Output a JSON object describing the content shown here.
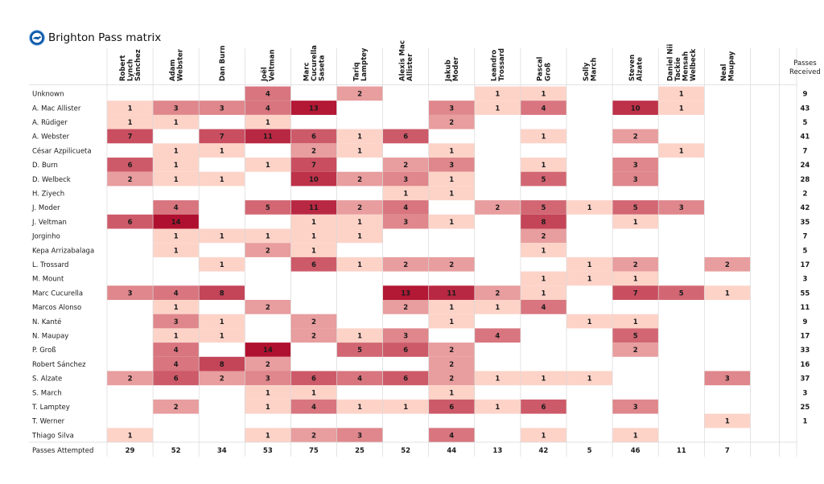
{
  "title": "Brighton Pass matrix",
  "logo_icon": "brighton-crest-icon",
  "chart_data": {
    "type": "heatmap",
    "title": "Brighton Pass matrix",
    "columns": [
      [
        "Robert",
        "Lynch",
        "Sánchez"
      ],
      [
        "Adam",
        "Webster"
      ],
      [
        "Dan Burn"
      ],
      [
        "Joël",
        "Veltman"
      ],
      [
        "Marc",
        "Cucurella",
        "Saseta"
      ],
      [
        "Tariq",
        "Lamptey"
      ],
      [
        "Alexis Mac",
        "Allister"
      ],
      [
        "Jakub",
        "Moder"
      ],
      [
        "Leandro",
        "Trossard"
      ],
      [
        "Pascal",
        "Groß"
      ],
      [
        "Solly",
        "March"
      ],
      [
        "Steven",
        "Alzate"
      ],
      [
        "Daniel Nii",
        "Tackie",
        "Mensah",
        "Welbeck"
      ],
      [
        "Neal",
        "Maupay"
      ]
    ],
    "rows": [
      "Unknown",
      "A. Mac Allister",
      "A. Rüdiger",
      "A. Webster",
      "César Azpilicueta",
      "D. Burn",
      "D. Welbeck",
      "H. Ziyech",
      "J. Moder",
      "J. Veltman",
      "Jorginho",
      "Kepa Arrizabalaga",
      "L. Trossard",
      "M. Mount",
      "Marc Cucurella",
      "Marcos Alonso",
      "N. Kanté",
      "N. Maupay",
      "P. Groß",
      "Robert Sánchez",
      "S. Alzate",
      "S. March",
      "T. Lamptey",
      "T. Werner",
      "Thiago Silva"
    ],
    "values": [
      [
        null,
        null,
        null,
        4,
        null,
        2,
        null,
        null,
        1,
        1,
        null,
        null,
        1,
        null
      ],
      [
        1,
        3,
        3,
        4,
        13,
        null,
        null,
        3,
        1,
        4,
        null,
        10,
        1,
        null
      ],
      [
        1,
        1,
        null,
        1,
        null,
        null,
        null,
        2,
        null,
        null,
        null,
        null,
        null,
        null
      ],
      [
        7,
        null,
        7,
        11,
        6,
        1,
        6,
        null,
        null,
        1,
        null,
        2,
        null,
        null
      ],
      [
        null,
        1,
        1,
        null,
        2,
        1,
        null,
        1,
        null,
        null,
        null,
        null,
        1,
        null
      ],
      [
        6,
        1,
        null,
        1,
        7,
        null,
        2,
        3,
        null,
        1,
        null,
        3,
        null,
        null
      ],
      [
        2,
        1,
        1,
        null,
        10,
        2,
        3,
        1,
        null,
        5,
        null,
        3,
        null,
        null
      ],
      [
        null,
        null,
        null,
        null,
        null,
        null,
        1,
        1,
        null,
        null,
        null,
        null,
        null,
        null
      ],
      [
        null,
        4,
        null,
        5,
        11,
        2,
        4,
        null,
        2,
        5,
        1,
        5,
        3,
        null
      ],
      [
        6,
        14,
        null,
        null,
        1,
        1,
        3,
        1,
        null,
        8,
        null,
        1,
        null,
        null
      ],
      [
        null,
        1,
        1,
        1,
        1,
        1,
        null,
        null,
        null,
        2,
        null,
        null,
        null,
        null
      ],
      [
        null,
        1,
        null,
        2,
        1,
        null,
        null,
        null,
        null,
        1,
        null,
        null,
        null,
        null
      ],
      [
        null,
        null,
        1,
        null,
        6,
        1,
        2,
        2,
        null,
        null,
        1,
        2,
        null,
        2
      ],
      [
        null,
        null,
        null,
        null,
        null,
        null,
        null,
        null,
        null,
        1,
        1,
        1,
        null,
        null
      ],
      [
        3,
        4,
        8,
        null,
        null,
        null,
        13,
        11,
        2,
        1,
        null,
        7,
        5,
        1
      ],
      [
        null,
        1,
        null,
        2,
        null,
        null,
        2,
        1,
        1,
        4,
        null,
        null,
        null,
        null
      ],
      [
        null,
        3,
        1,
        null,
        2,
        null,
        null,
        1,
        null,
        null,
        1,
        1,
        null,
        null
      ],
      [
        null,
        1,
        1,
        null,
        2,
        1,
        3,
        null,
        4,
        null,
        null,
        5,
        null,
        null
      ],
      [
        null,
        4,
        null,
        14,
        null,
        5,
        6,
        2,
        null,
        null,
        null,
        2,
        null,
        null
      ],
      [
        null,
        4,
        8,
        2,
        null,
        null,
        null,
        2,
        null,
        null,
        null,
        null,
        null,
        null
      ],
      [
        2,
        6,
        2,
        3,
        6,
        4,
        6,
        2,
        1,
        1,
        1,
        null,
        null,
        3
      ],
      [
        null,
        null,
        null,
        1,
        1,
        null,
        null,
        1,
        null,
        null,
        null,
        null,
        null,
        null
      ],
      [
        null,
        2,
        null,
        1,
        4,
        1,
        1,
        6,
        1,
        6,
        null,
        3,
        null,
        null
      ],
      [
        null,
        null,
        null,
        null,
        null,
        null,
        null,
        null,
        null,
        null,
        null,
        null,
        null,
        1
      ],
      [
        1,
        null,
        null,
        1,
        2,
        3,
        null,
        4,
        null,
        1,
        null,
        1,
        null,
        null
      ]
    ],
    "row_totals_label": [
      "Passes",
      "Received"
    ],
    "row_totals": [
      9,
      43,
      5,
      41,
      7,
      24,
      28,
      2,
      42,
      35,
      7,
      5,
      17,
      3,
      55,
      11,
      9,
      17,
      33,
      16,
      37,
      3,
      25,
      1,
      ""
    ],
    "col_totals_label": "Passes Attempted",
    "col_totals": [
      29,
      52,
      34,
      53,
      75,
      25,
      52,
      44,
      13,
      42,
      5,
      46,
      11,
      7
    ],
    "color_scale": {
      "low": "#fdd3c8",
      "high": "#b0102f",
      "max_value": 14
    },
    "grid": false
  }
}
